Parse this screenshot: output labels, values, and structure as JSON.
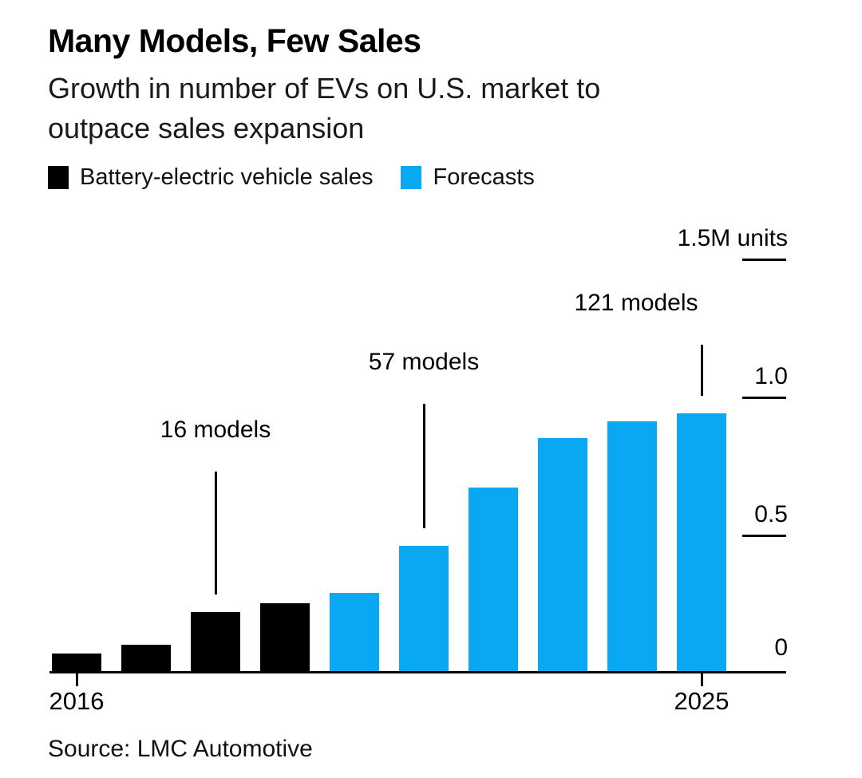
{
  "header": {
    "title": "Many Models, Few Sales",
    "subtitle_line1": "Growth in number of EVs on U.S. market to",
    "subtitle_line2": "outpace sales expansion"
  },
  "legend": {
    "items": [
      {
        "label": "Battery-electric vehicle sales",
        "color": "#000000"
      },
      {
        "label": "Forecasts",
        "color": "#0aa7f3"
      }
    ]
  },
  "source": "Source: LMC Automotive",
  "colors": {
    "sales_black": "#000000",
    "forecast_blue": "#0aa7f3",
    "text": "#000000"
  },
  "chart_data": {
    "type": "bar",
    "title": "Many Models, Few Sales",
    "subtitle": "Growth in number of EVs on U.S. market to outpace sales expansion",
    "ylabel": "units (millions)",
    "categories": [
      "2016",
      "2017",
      "2018",
      "2019",
      "2020",
      "2021",
      "2022",
      "2023",
      "2024",
      "2025"
    ],
    "series": [
      {
        "name": "Battery-electric vehicle sales",
        "color": "#000000",
        "values": [
          0.07,
          0.1,
          0.22,
          0.25,
          null,
          null,
          null,
          null,
          null,
          null
        ]
      },
      {
        "name": "Forecasts",
        "color": "#0aa7f3",
        "values": [
          null,
          null,
          null,
          null,
          0.29,
          0.46,
          0.67,
          0.85,
          0.91,
          0.94
        ]
      }
    ],
    "ylim": [
      0,
      1.5
    ],
    "yticks": [
      {
        "value": 1.5,
        "label": "1.5M units"
      },
      {
        "value": 1.0,
        "label": "1.0"
      },
      {
        "value": 0.5,
        "label": "0.5"
      },
      {
        "value": 0,
        "label": "0"
      }
    ],
    "xticks_shown": [
      "2016",
      "2025"
    ],
    "grid": false,
    "legend_position": "top",
    "annotations": [
      {
        "label": "16 models",
        "category": "2018"
      },
      {
        "label": "57 models",
        "category": "2021"
      },
      {
        "label": "121 models",
        "category": "2025"
      }
    ]
  }
}
